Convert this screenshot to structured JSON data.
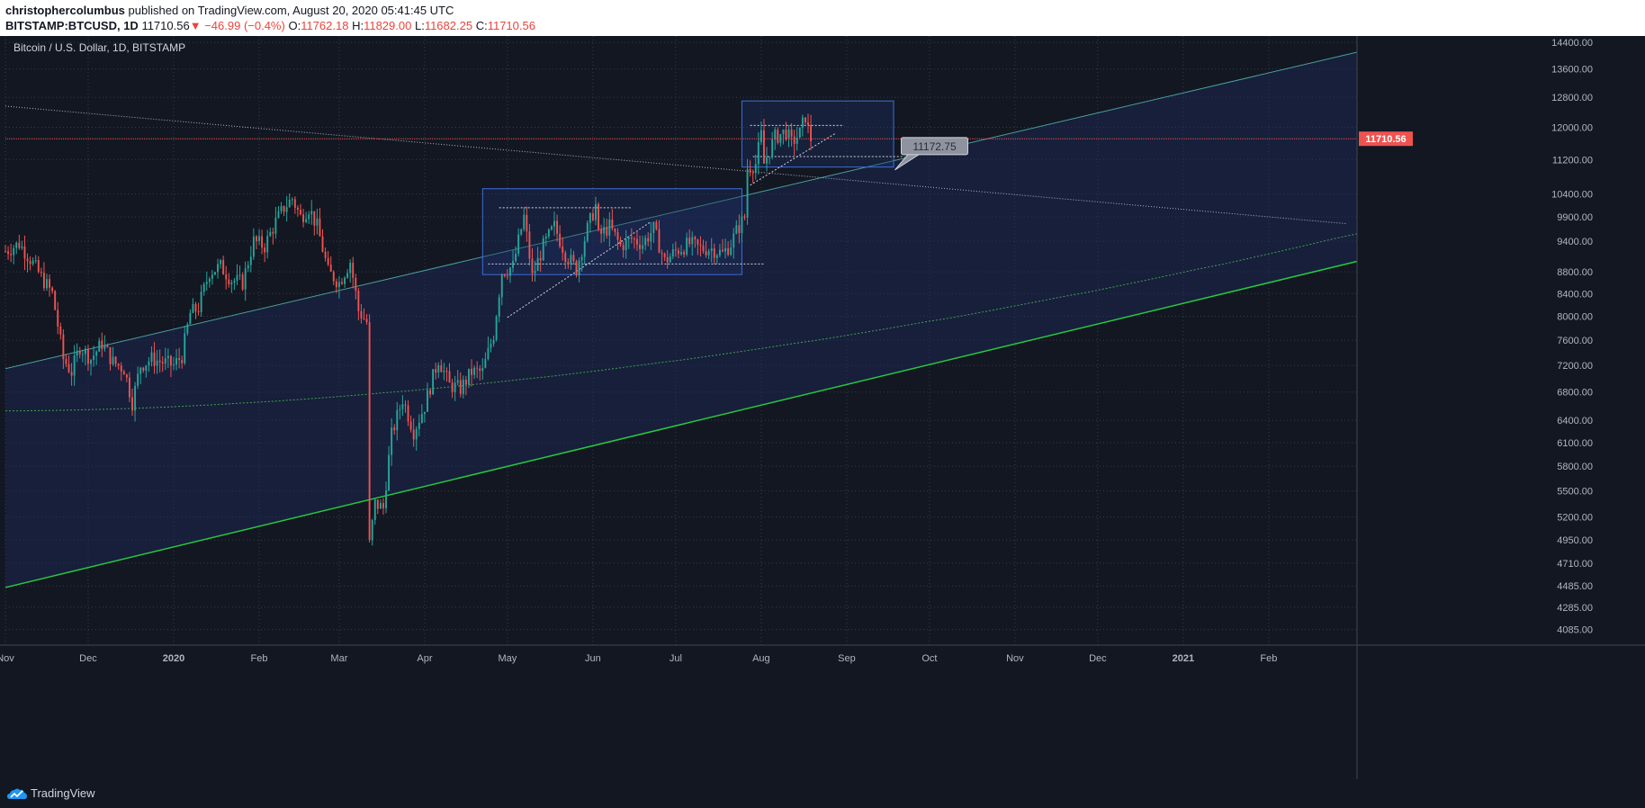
{
  "header": {
    "publisher": "christophercolumbus",
    "published_text": "published on TradingView.com, August 20, 2020 05:41:45 UTC",
    "symbol": "BITSTAMP:BTCUSD, 1D",
    "last": "11710.56",
    "change": "−46.99 (−0.4%)",
    "o_label": "O:",
    "o_value": "11762.18",
    "h_label": "H:",
    "h_value": "11829.00",
    "l_label": "L:",
    "l_value": "11682.25",
    "c_label": "C:",
    "c_value": "11710.56"
  },
  "footer": {
    "brand": "TradingView"
  },
  "colors": {
    "background": "#131722",
    "up_candle": "#26a69a",
    "down_candle": "#ef5350",
    "price_line": "#ef5350",
    "support_line": "#27c93f",
    "box_fill": "#1c2b5a",
    "box_stroke": "#2962ff",
    "axis_text": "#b2b5be"
  },
  "chart_data": {
    "type": "candlestick",
    "title": "Bitcoin / U.S. Dollar, 1D, BITSTAMP",
    "y_scale": "log",
    "ylim": [
      3950,
      14600
    ],
    "y_ticks": [
      4085,
      4285,
      4485,
      4710,
      4950,
      5200,
      5500,
      5800,
      6100,
      6400,
      6800,
      7200,
      7600,
      8000,
      8400,
      8800,
      9400,
      9900,
      10400,
      11200,
      12000,
      12800,
      13600,
      14400
    ],
    "y_tick_labels": [
      "4085.00",
      "4285.00",
      "4485.00",
      "4710.00",
      "4950.00",
      "5200.00",
      "5500.00",
      "5800.00",
      "6100.00",
      "6400.00",
      "6800.00",
      "7200.00",
      "7600.00",
      "8000.00",
      "8400.00",
      "8800.00",
      "9400.00",
      "9900.00",
      "10400.00",
      "11200.00",
      "12000.00",
      "12800.00",
      "13600.00",
      "14400.00"
    ],
    "x_range": [
      "2019-11-01",
      "2021-03-05"
    ],
    "x_ticks": [
      {
        "date": "2019-11-01",
        "label": "Nov"
      },
      {
        "date": "2019-12-01",
        "label": "Dec"
      },
      {
        "date": "2020-01-01",
        "label": "2020"
      },
      {
        "date": "2020-02-01",
        "label": "Feb"
      },
      {
        "date": "2020-03-01",
        "label": "Mar"
      },
      {
        "date": "2020-04-01",
        "label": "Apr"
      },
      {
        "date": "2020-05-01",
        "label": "May"
      },
      {
        "date": "2020-06-01",
        "label": "Jun"
      },
      {
        "date": "2020-07-01",
        "label": "Jul"
      },
      {
        "date": "2020-08-01",
        "label": "Aug"
      },
      {
        "date": "2020-09-01",
        "label": "Sep"
      },
      {
        "date": "2020-10-01",
        "label": "Oct"
      },
      {
        "date": "2020-11-01",
        "label": "Nov"
      },
      {
        "date": "2020-12-01",
        "label": "Dec"
      },
      {
        "date": "2021-01-01",
        "label": "2021"
      },
      {
        "date": "2021-02-01",
        "label": "Feb"
      }
    ],
    "last_price": 11710.56,
    "last_price_label": "11710.56",
    "callout_label": "11172.75",
    "close_path": [
      [
        "2019-11-01",
        9200
      ],
      [
        "2019-11-06",
        9350
      ],
      [
        "2019-11-10",
        9050
      ],
      [
        "2019-11-14",
        8700
      ],
      [
        "2019-11-18",
        8400
      ],
      [
        "2019-11-22",
        7300
      ],
      [
        "2019-11-25",
        7100
      ],
      [
        "2019-11-28",
        7500
      ],
      [
        "2019-12-02",
        7300
      ],
      [
        "2019-12-06",
        7550
      ],
      [
        "2019-12-10",
        7250
      ],
      [
        "2019-12-14",
        7150
      ],
      [
        "2019-12-17",
        6650
      ],
      [
        "2019-12-20",
        7200
      ],
      [
        "2019-12-24",
        7300
      ],
      [
        "2019-12-28",
        7250
      ],
      [
        "2020-01-01",
        7200
      ],
      [
        "2020-01-04",
        7350
      ],
      [
        "2020-01-07",
        8050
      ],
      [
        "2020-01-10",
        8150
      ],
      [
        "2020-01-14",
        8800
      ],
      [
        "2020-01-18",
        8900
      ],
      [
        "2020-01-22",
        8650
      ],
      [
        "2020-01-26",
        8600
      ],
      [
        "2020-01-30",
        9400
      ],
      [
        "2020-02-03",
        9300
      ],
      [
        "2020-02-07",
        9800
      ],
      [
        "2020-02-10",
        10100
      ],
      [
        "2020-02-13",
        10300
      ],
      [
        "2020-02-16",
        9900
      ],
      [
        "2020-02-19",
        10100
      ],
      [
        "2020-02-22",
        9700
      ],
      [
        "2020-02-26",
        8800
      ],
      [
        "2020-03-01",
        8600
      ],
      [
        "2020-03-05",
        9000
      ],
      [
        "2020-03-08",
        8100
      ],
      [
        "2020-03-11",
        7900
      ],
      [
        "2020-03-12",
        4900
      ],
      [
        "2020-03-14",
        5350
      ],
      [
        "2020-03-17",
        5300
      ],
      [
        "2020-03-20",
        6200
      ],
      [
        "2020-03-24",
        6700
      ],
      [
        "2020-03-28",
        6250
      ],
      [
        "2020-04-01",
        6600
      ],
      [
        "2020-04-06",
        7300
      ],
      [
        "2020-04-10",
        6900
      ],
      [
        "2020-04-14",
        6850
      ],
      [
        "2020-04-18",
        7100
      ],
      [
        "2020-04-22",
        7100
      ],
      [
        "2020-04-26",
        7700
      ],
      [
        "2020-04-29",
        8800
      ],
      [
        "2020-05-03",
        8900
      ],
      [
        "2020-05-07",
        9900
      ],
      [
        "2020-05-10",
        8700
      ],
      [
        "2020-05-14",
        9300
      ],
      [
        "2020-05-18",
        9700
      ],
      [
        "2020-05-22",
        9150
      ],
      [
        "2020-05-26",
        8850
      ],
      [
        "2020-05-30",
        9650
      ],
      [
        "2020-06-02",
        10150
      ],
      [
        "2020-06-03",
        9500
      ],
      [
        "2020-06-07",
        9700
      ],
      [
        "2020-06-11",
        9300
      ],
      [
        "2020-06-15",
        9450
      ],
      [
        "2020-06-19",
        9350
      ],
      [
        "2020-06-23",
        9650
      ],
      [
        "2020-06-27",
        9000
      ],
      [
        "2020-07-01",
        9200
      ],
      [
        "2020-07-06",
        9350
      ],
      [
        "2020-07-10",
        9250
      ],
      [
        "2020-07-14",
        9250
      ],
      [
        "2020-07-18",
        9150
      ],
      [
        "2020-07-21",
        9350
      ],
      [
        "2020-07-23",
        9600
      ],
      [
        "2020-07-26",
        9900
      ],
      [
        "2020-07-27",
        11000
      ],
      [
        "2020-07-30",
        11100
      ],
      [
        "2020-08-01",
        11800
      ],
      [
        "2020-08-02",
        11100
      ],
      [
        "2020-08-06",
        11750
      ],
      [
        "2020-08-10",
        11900
      ],
      [
        "2020-08-12",
        11600
      ],
      [
        "2020-08-15",
        11850
      ],
      [
        "2020-08-17",
        12300
      ],
      [
        "2020-08-18",
        11950
      ],
      [
        "2020-08-19",
        11710
      ]
    ]
  }
}
